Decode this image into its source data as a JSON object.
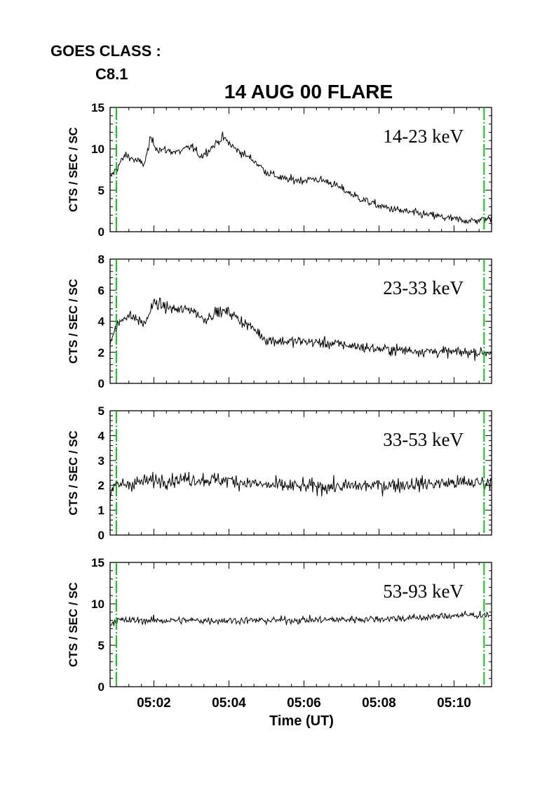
{
  "goes": {
    "label": "GOES CLASS :",
    "value": "C8.1"
  },
  "chart_data": {
    "type": "line",
    "title": "14 AUG 00 FLARE",
    "xlabel": "Time (UT)",
    "ylabel": "CTS / SEC / SC",
    "x_tick_labels": [
      "05:02",
      "05:04",
      "05:06",
      "05:08",
      "05:10"
    ],
    "x_tick_values": [
      "05:02",
      "05:04",
      "05:06",
      "05:08",
      "05:10"
    ],
    "xlim": [
      "05:00:50",
      "05:11:00"
    ],
    "marker_lines": {
      "color": "#00c000",
      "times": [
        "05:01:00",
        "05:10:48"
      ]
    },
    "panels": [
      {
        "name": "14-23 keV",
        "ylim": [
          0,
          15
        ],
        "yticks": [
          0,
          5,
          10,
          15
        ],
        "noise": 0.45,
        "x": [
          "05:00:50",
          "05:01:00",
          "05:01:15",
          "05:01:30",
          "05:01:45",
          "05:01:55",
          "05:02:05",
          "05:02:20",
          "05:02:40",
          "05:03:00",
          "05:03:15",
          "05:03:30",
          "05:03:50",
          "05:04:10",
          "05:04:40",
          "05:05:00",
          "05:05:30",
          "05:06:00",
          "05:06:15",
          "05:06:40",
          "05:07:00",
          "05:07:30",
          "05:08:00",
          "05:08:30",
          "05:09:00",
          "05:09:30",
          "05:10:00",
          "05:10:30",
          "05:11:00"
        ],
        "y": [
          6.5,
          7.6,
          9.3,
          8.6,
          8.2,
          11.3,
          10.0,
          9.8,
          9.6,
          10.3,
          9.1,
          10.0,
          11.4,
          10.0,
          8.6,
          7.2,
          6.3,
          6.2,
          6.4,
          6.0,
          5.2,
          4.0,
          3.1,
          2.6,
          2.2,
          1.9,
          1.5,
          1.3,
          1.6
        ]
      },
      {
        "name": "23-33 keV",
        "ylim": [
          0,
          8
        ],
        "yticks": [
          0,
          2,
          4,
          6,
          8
        ],
        "noise": 0.32,
        "x": [
          "05:00:50",
          "05:01:00",
          "05:01:15",
          "05:01:30",
          "05:01:45",
          "05:02:00",
          "05:02:20",
          "05:02:40",
          "05:03:00",
          "05:03:20",
          "05:03:40",
          "05:04:00",
          "05:04:20",
          "05:04:40",
          "05:05:00",
          "05:05:30",
          "05:06:00",
          "05:07:00",
          "05:08:00",
          "05:09:00",
          "05:10:00",
          "05:11:00"
        ],
        "y": [
          2.8,
          3.6,
          4.4,
          4.2,
          3.8,
          5.2,
          4.9,
          4.7,
          4.8,
          4.1,
          4.6,
          4.6,
          4.0,
          3.5,
          2.8,
          2.7,
          2.7,
          2.5,
          2.2,
          2.1,
          2.0,
          2.0
        ]
      },
      {
        "name": "33-53 keV",
        "ylim": [
          0,
          5
        ],
        "yticks": [
          0,
          1,
          2,
          3,
          4,
          5
        ],
        "noise": 0.27,
        "x": [
          "05:00:50",
          "05:01:00",
          "05:02:00",
          "05:03:00",
          "05:04:00",
          "05:05:00",
          "05:06:00",
          "05:07:00",
          "05:08:00",
          "05:09:00",
          "05:10:00",
          "05:11:00"
        ],
        "y": [
          1.6,
          2.0,
          2.2,
          2.25,
          2.2,
          2.0,
          1.95,
          1.95,
          2.0,
          2.05,
          2.1,
          2.1
        ]
      },
      {
        "name": "53-93 keV",
        "ylim": [
          0,
          15
        ],
        "yticks": [
          0,
          5,
          10,
          15
        ],
        "noise": 0.42,
        "x": [
          "05:00:50",
          "05:01:00",
          "05:03:00",
          "05:05:00",
          "05:07:00",
          "05:09:00",
          "05:10:00",
          "05:11:00"
        ],
        "y": [
          7.6,
          8.0,
          8.0,
          8.0,
          8.1,
          8.3,
          8.6,
          8.7
        ]
      }
    ]
  }
}
